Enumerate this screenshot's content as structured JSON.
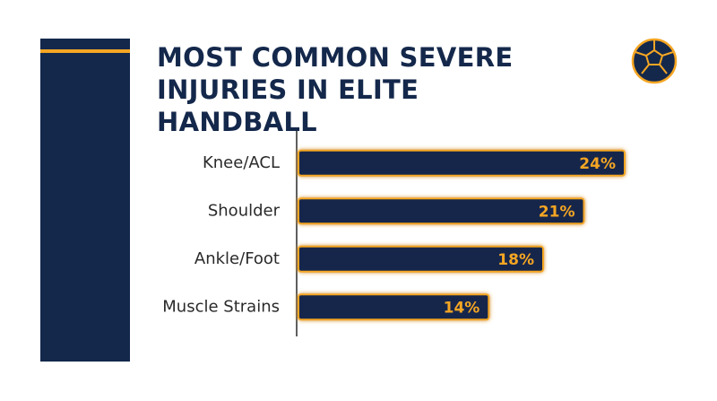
{
  "chart_data": {
    "type": "bar",
    "orientation": "horizontal",
    "title": "MOST COMMON SEVERE INJURIES IN ELITE HANDBALL",
    "categories": [
      "Knee/ACL",
      "Shoulder",
      "Ankle/Foot",
      "Muscle Strains"
    ],
    "values": [
      24,
      21,
      18,
      14
    ],
    "value_labels": [
      "24%",
      "21%",
      "18%",
      "14%"
    ],
    "color": "#14284b",
    "edge_color": "#f5a623"
  }
}
